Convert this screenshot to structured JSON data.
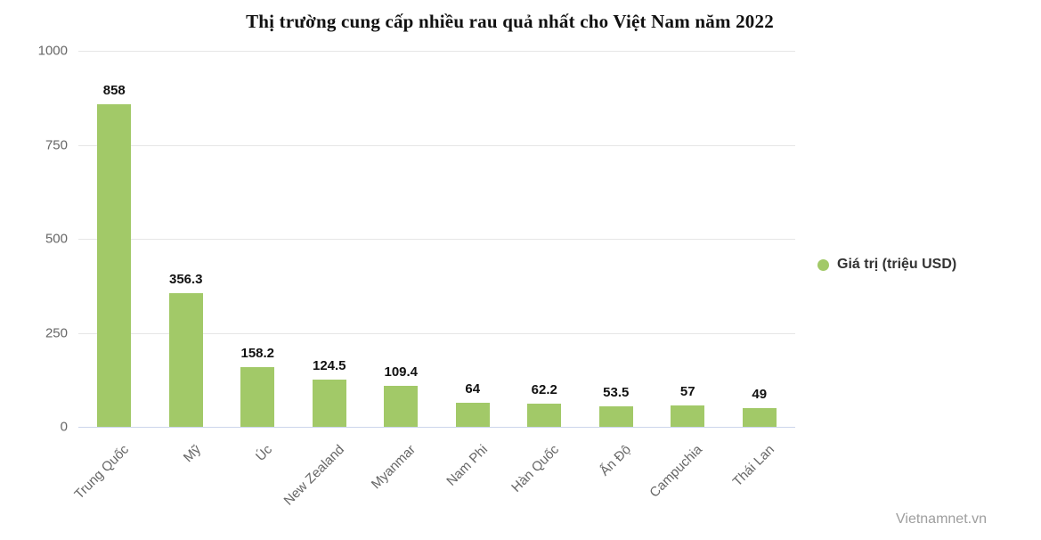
{
  "watermark": "Vietnamnet.vn",
  "chart_data": {
    "type": "bar",
    "title": "Thị trường cung cấp nhiều rau quả nhất cho Việt Nam năm 2022",
    "categories": [
      "Trung Quốc",
      "Mỹ",
      "Úc",
      "New Zealand",
      "Myanmar",
      "Nam Phi",
      "Hàn Quốc",
      "Ấn Độ",
      "Campuchia",
      "Thái Lan"
    ],
    "values": [
      858,
      356.3,
      158.2,
      124.5,
      109.4,
      64,
      62.2,
      53.5,
      57,
      49
    ],
    "series": [
      {
        "name": "Giá trị (triệu USD)",
        "values": [
          858,
          356.3,
          158.2,
          124.5,
          109.4,
          64,
          62.2,
          53.5,
          57,
          49
        ]
      }
    ],
    "legend_label": "Giá trị (triệu USD)",
    "xlabel": "",
    "ylabel": "",
    "ylim": [
      0,
      1000
    ],
    "yticks": [
      0,
      250,
      500,
      750,
      1000
    ],
    "grid": true,
    "legend_position": "right",
    "x_label_rotation": -45,
    "colors": {
      "bar": "#a2c968",
      "grid": "#e6e6e6",
      "axis_line": "#ccd6eb",
      "tick_label": "#666666",
      "data_label": "#111111",
      "legend_text": "#333333",
      "title": "#111111",
      "watermark": "#9e9e9e"
    }
  }
}
